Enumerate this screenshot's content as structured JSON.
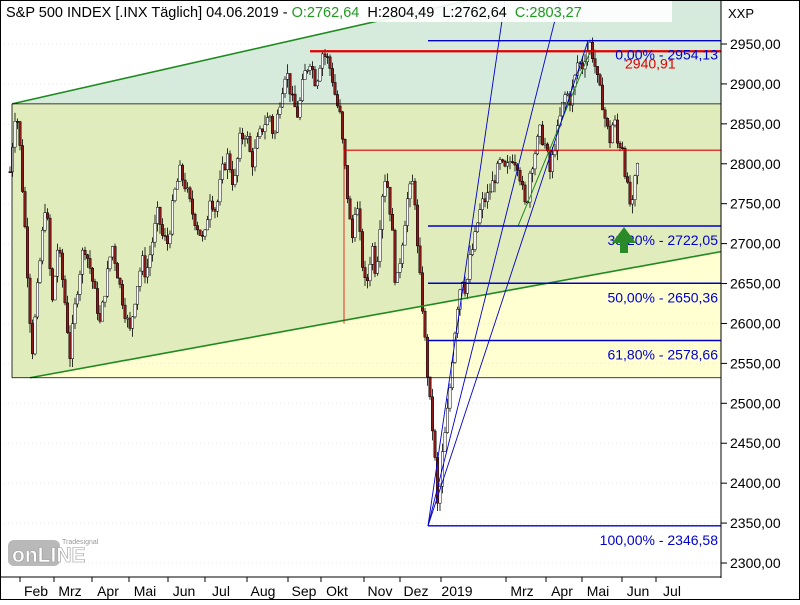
{
  "header": {
    "title": "S&P 500 INDEX [.INX  Täglich] 04.06.2019",
    "open": "O:2762,64",
    "high": "H:2804,49",
    "low": "L:2762,64",
    "close": "C:2803,27"
  },
  "watermark": {
    "brand": "Tradesignal",
    "logo": "onLINE"
  },
  "colors": {
    "channel_fill": "#dbe9b8",
    "channel_band": "#ffffcc",
    "upper_band_fill": "#d6ebdc",
    "trend_line": "#1f8a1f",
    "resistance_line": "#e00000",
    "fib_line": "#0000cc",
    "candle_up": "#ffffff",
    "candle_down": "#8b1a1a",
    "arrow": "#2a8a2a",
    "price_axis_bg": "#ffffff"
  },
  "chart_data": {
    "type": "candlestick",
    "instrument": "S&P 500 INDEX",
    "interval": "Täglich",
    "axis_label": "XXP",
    "y_ticks": [
      2300,
      2350,
      2400,
      2450,
      2500,
      2550,
      2600,
      2650,
      2700,
      2750,
      2800,
      2850,
      2900,
      2950
    ],
    "y_tick_labels": [
      "2300,00",
      "2350,00",
      "2400,00",
      "2450,00",
      "2500,00",
      "2550,00",
      "2600,00",
      "2650,00",
      "2700,00",
      "2750,00",
      "2800,00",
      "2850,00",
      "2900,00",
      "2950,00"
    ],
    "ylim": [
      2285,
      3005
    ],
    "x_months": [
      "Feb",
      "Mrz",
      "Apr",
      "Mai",
      "Jun",
      "Jul",
      "Aug",
      "Sep",
      "Okt",
      "Nov",
      "Dez",
      "2019",
      "Mrz",
      "Apr",
      "Mai",
      "Jun",
      "Jul"
    ],
    "fibonacci": [
      {
        "pct": "0,00%",
        "value": 2954.13,
        "label": "0,00% - 2954,13"
      },
      {
        "pct": "38,20%",
        "value": 2722.05,
        "label": "38,20% - 2722,05"
      },
      {
        "pct": "50,00%",
        "value": 2650.36,
        "label": "50,00% - 2650,36"
      },
      {
        "pct": "61,80%",
        "value": 2578.66,
        "label": "61,80% - 2578,66"
      },
      {
        "pct": "100,00%",
        "value": 2346.58,
        "label": "100,00% - 2346,58"
      }
    ],
    "resistance": {
      "value": 2940.91,
      "label": "2940,91"
    },
    "horizontal_lines": [
      2875,
      2817,
      2532
    ],
    "price_path": [
      [
        2790,
        0
      ],
      [
        2875,
        6
      ],
      [
        2820,
        10
      ],
      [
        2700,
        16
      ],
      [
        2560,
        22
      ],
      [
        2650,
        28
      ],
      [
        2760,
        36
      ],
      [
        2620,
        42
      ],
      [
        2700,
        48
      ],
      [
        2640,
        54
      ],
      [
        2560,
        60
      ],
      [
        2610,
        64
      ],
      [
        2650,
        68
      ],
      [
        2700,
        74
      ],
      [
        2670,
        80
      ],
      [
        2630,
        86
      ],
      [
        2600,
        90
      ],
      [
        2650,
        96
      ],
      [
        2700,
        102
      ],
      [
        2660,
        108
      ],
      [
        2620,
        114
      ],
      [
        2590,
        120
      ],
      [
        2640,
        126
      ],
      [
        2680,
        132
      ],
      [
        2660,
        136
      ],
      [
        2700,
        142
      ],
      [
        2740,
        148
      ],
      [
        2710,
        152
      ],
      [
        2700,
        158
      ],
      [
        2760,
        164
      ],
      [
        2790,
        170
      ],
      [
        2770,
        176
      ],
      [
        2740,
        182
      ],
      [
        2720,
        188
      ],
      [
        2700,
        194
      ],
      [
        2760,
        200
      ],
      [
        2740,
        206
      ],
      [
        2790,
        212
      ],
      [
        2810,
        218
      ],
      [
        2770,
        224
      ],
      [
        2830,
        230
      ],
      [
        2840,
        236
      ],
      [
        2800,
        242
      ],
      [
        2830,
        248
      ],
      [
        2850,
        254
      ],
      [
        2860,
        260
      ],
      [
        2830,
        264
      ],
      [
        2880,
        270
      ],
      [
        2920,
        276
      ],
      [
        2880,
        282
      ],
      [
        2860,
        288
      ],
      [
        2910,
        294
      ],
      [
        2930,
        300
      ],
      [
        2900,
        306
      ],
      [
        2940,
        312
      ],
      [
        2930,
        318
      ],
      [
        2910,
        322
      ],
      [
        2880,
        326
      ],
      [
        2860,
        330
      ],
      [
        2780,
        336
      ],
      [
        2700,
        342
      ],
      [
        2760,
        346
      ],
      [
        2680,
        352
      ],
      [
        2640,
        356
      ],
      [
        2700,
        362
      ],
      [
        2660,
        366
      ],
      [
        2760,
        372
      ],
      [
        2790,
        376
      ],
      [
        2720,
        382
      ],
      [
        2640,
        386
      ],
      [
        2700,
        392
      ],
      [
        2760,
        398
      ],
      [
        2780,
        404
      ],
      [
        2680,
        408
      ],
      [
        2630,
        412
      ],
      [
        2560,
        416
      ],
      [
        2500,
        420
      ],
      [
        2450,
        424
      ],
      [
        2360,
        428
      ],
      [
        2430,
        432
      ],
      [
        2470,
        436
      ],
      [
        2520,
        440
      ],
      [
        2580,
        444
      ],
      [
        2630,
        448
      ],
      [
        2660,
        452
      ],
      [
        2640,
        456
      ],
      [
        2680,
        460
      ],
      [
        2700,
        464
      ],
      [
        2730,
        468
      ],
      [
        2750,
        472
      ],
      [
        2760,
        478
      ],
      [
        2780,
        484
      ],
      [
        2800,
        490
      ],
      [
        2790,
        496
      ],
      [
        2810,
        502
      ],
      [
        2800,
        508
      ],
      [
        2770,
        512
      ],
      [
        2740,
        516
      ],
      [
        2790,
        520
      ],
      [
        2820,
        526
      ],
      [
        2840,
        530
      ],
      [
        2820,
        536
      ],
      [
        2790,
        540
      ],
      [
        2830,
        546
      ],
      [
        2870,
        552
      ],
      [
        2890,
        556
      ],
      [
        2880,
        560
      ],
      [
        2900,
        564
      ],
      [
        2930,
        568
      ],
      [
        2920,
        572
      ],
      [
        2940,
        576
      ],
      [
        2950,
        580
      ],
      [
        2930,
        584
      ],
      [
        2900,
        588
      ],
      [
        2880,
        592
      ],
      [
        2850,
        596
      ],
      [
        2830,
        600
      ],
      [
        2860,
        604
      ],
      [
        2820,
        608
      ],
      [
        2830,
        612
      ],
      [
        2780,
        616
      ],
      [
        2750,
        620
      ],
      [
        2740,
        622
      ],
      [
        2790,
        626
      ],
      [
        2800,
        628
      ]
    ]
  }
}
